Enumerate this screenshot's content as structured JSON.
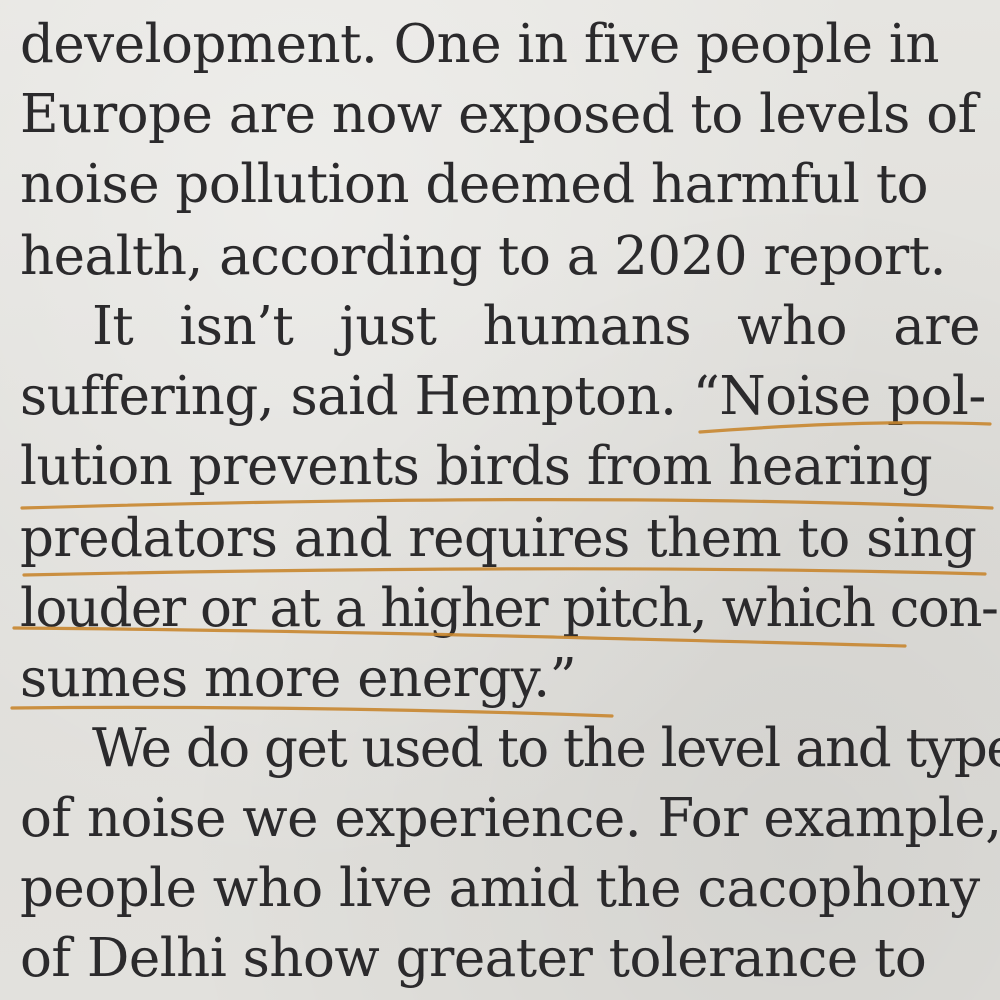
{
  "article": {
    "lines": [
      "development. One in five people in",
      "Europe are now exposed to levels of",
      "noise pollution deemed harmful to",
      "health, according to a 2020 report.",
      "It isn’t just humans who are",
      "suffering, said Hempton. “Noise pol-",
      "lution prevents birds from hearing",
      "predators and requires them to sing",
      "louder or at a higher pitch, which con-",
      "sumes more energy.”",
      "We do get used to the level and type",
      "of noise we experience. For example,",
      "people who live amid the cacophony",
      "of Delhi show greater tolerance to"
    ],
    "para2_words": [
      "It",
      "isn’t",
      "just",
      "humans",
      "who",
      "are"
    ]
  },
  "highlight": {
    "color": "#c8862f"
  }
}
